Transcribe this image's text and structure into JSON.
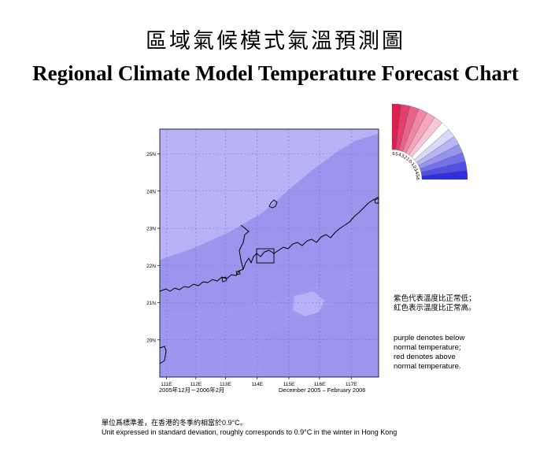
{
  "title_zh": "區域氣候模式氣溫預測圖",
  "title_en": "Regional Climate Model Temperature Forecast Chart",
  "map": {
    "lat_ticks": [
      "25N",
      "24N",
      "23N",
      "22N",
      "21N",
      "20N"
    ],
    "lon_ticks": [
      "111E",
      "112E",
      "113E",
      "114E",
      "115E",
      "116E",
      "117E"
    ],
    "colors": {
      "sea_light": "#b7b2f5",
      "land_mid": "#9a96ee",
      "coast": "#000000",
      "grid": "#6e6ac8"
    }
  },
  "period": {
    "zh": "2005年12月－2006年2月",
    "en": "December 2005 – February 2006"
  },
  "scale": {
    "labels": [
      "6",
      "5",
      "4",
      "3",
      "2",
      "1",
      "0",
      "-1",
      "-2",
      "-3",
      "-4",
      "-5",
      "-6"
    ],
    "colors": [
      "#d81f4e",
      "#e2406b",
      "#ea6387",
      "#f086a2",
      "#f5a8bd",
      "#f8c6d4",
      "#ffffff",
      "#d8d8f8",
      "#b7b6f4",
      "#9594ef",
      "#7372ea",
      "#5150e4",
      "#3230dd"
    ]
  },
  "note_zh": "紫色代表溫度比正常低；紅色表示溫度比正常高。",
  "note_en": [
    "purple denotes below",
    "normal temperature;",
    "red denotes above",
    "normal temperature."
  ],
  "footer": {
    "zh": "單位爲標準差，在香港的冬季約相當於0.9°C。",
    "en": "Unit expressed in standard deviation, roughly corresponds to 0.9°C in the winter in Hong Kong"
  }
}
